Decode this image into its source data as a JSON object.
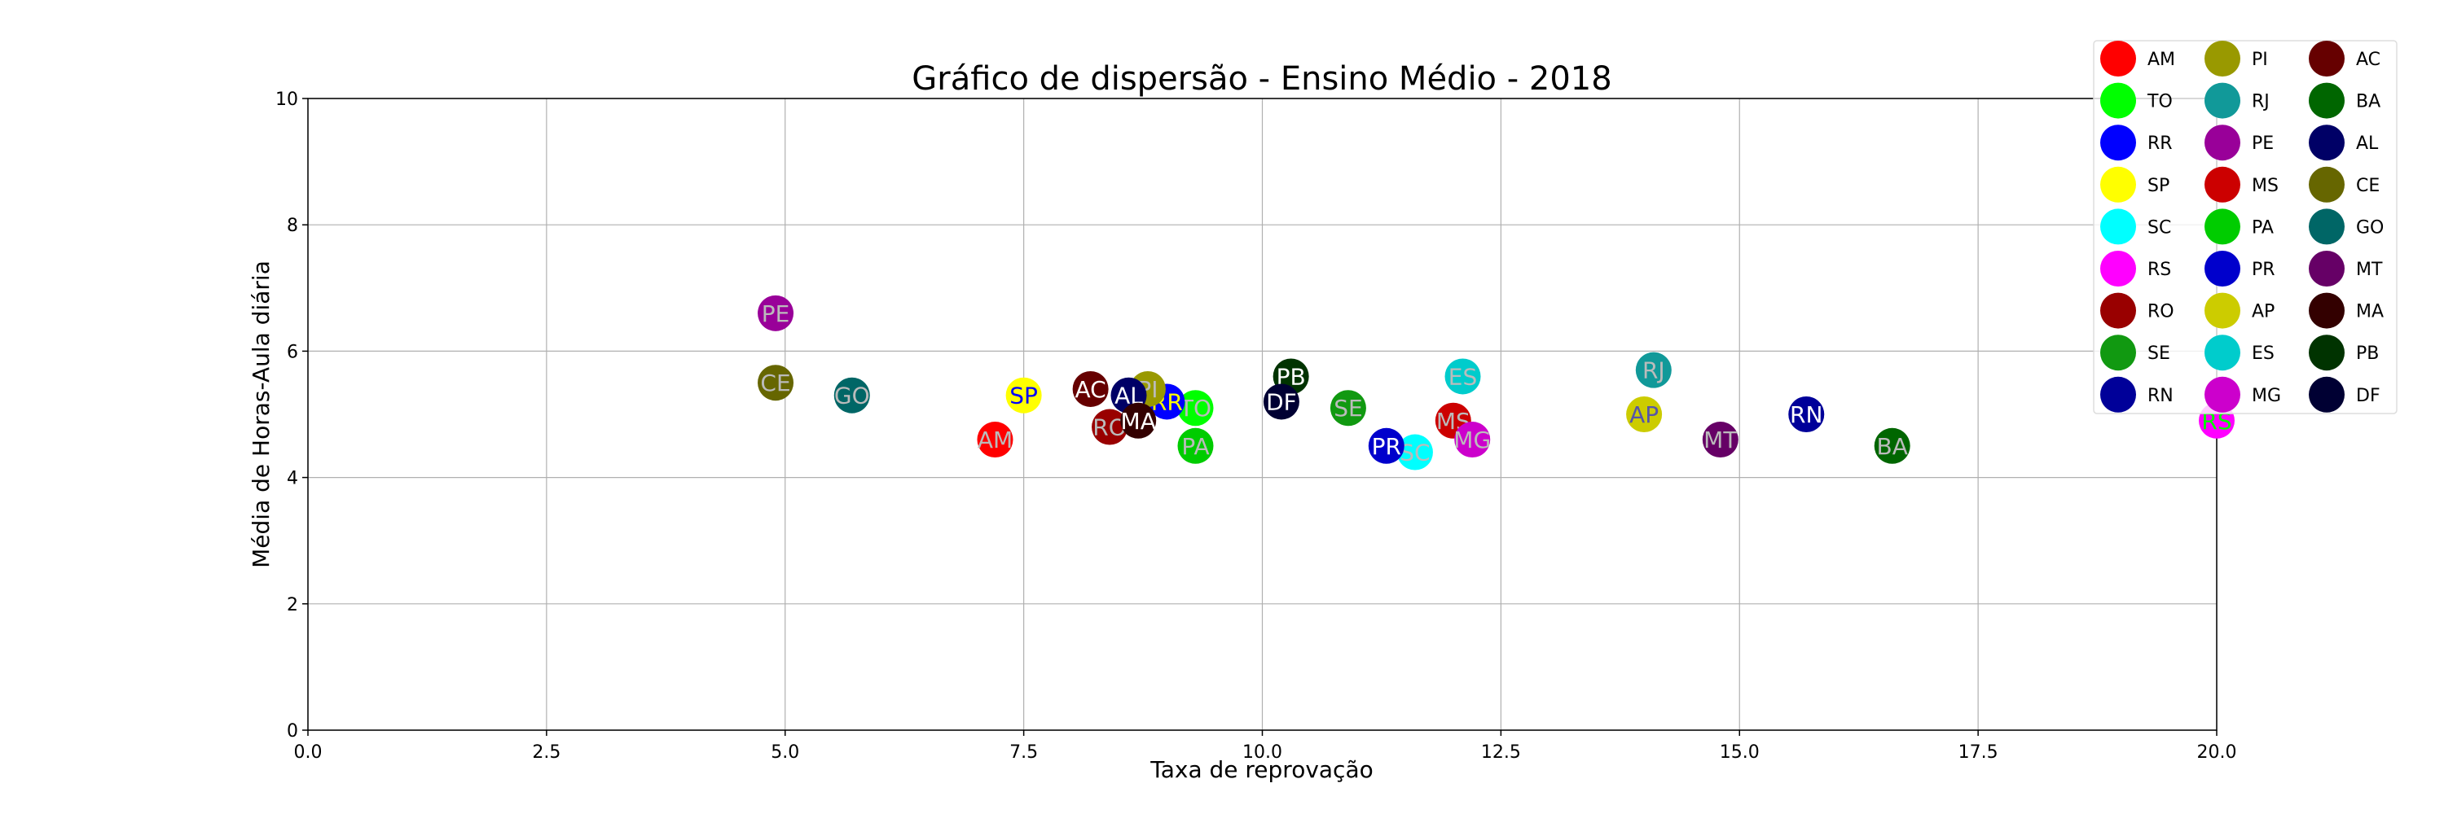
{
  "chart_data": {
    "type": "scatter",
    "title": "Gráfico de dispersão - Ensino Médio - 2018",
    "xlabel": "Taxa de reprovação",
    "ylabel": "Média de Horas-Aula diária",
    "xlim": [
      0,
      20
    ],
    "ylim": [
      0,
      10
    ],
    "xticks": [
      "0.0",
      "2.5",
      "5.0",
      "7.5",
      "10.0",
      "12.5",
      "15.0",
      "17.5",
      "20.0"
    ],
    "yticks": [
      "0",
      "2",
      "4",
      "6",
      "8",
      "10"
    ],
    "grid": true,
    "legend_placement": "top-right",
    "series": [
      {
        "name": "AM",
        "color": "#ff0000",
        "text_color": "#bbbbbb",
        "x": 7.2,
        "y": 4.6
      },
      {
        "name": "TO",
        "color": "#00ff00",
        "text_color": "#bbbbbb",
        "x": 9.3,
        "y": 5.1
      },
      {
        "name": "RR",
        "color": "#0000ff",
        "text_color": "#ffff00",
        "x": 9.0,
        "y": 5.2
      },
      {
        "name": "SP",
        "color": "#ffff00",
        "text_color": "#0000ff",
        "x": 7.5,
        "y": 5.3
      },
      {
        "name": "SC",
        "color": "#00ffff",
        "text_color": "#bbbbbb",
        "x": 11.6,
        "y": 4.4
      },
      {
        "name": "RS",
        "color": "#ff00ff",
        "text_color": "#00ff00",
        "x": 20.0,
        "y": 4.9
      },
      {
        "name": "RO",
        "color": "#990000",
        "text_color": "#bbbbbb",
        "x": 8.4,
        "y": 4.8
      },
      {
        "name": "SE",
        "color": "#119911",
        "text_color": "#bbbbbb",
        "x": 10.9,
        "y": 5.1
      },
      {
        "name": "RN",
        "color": "#000099",
        "text_color": "#ffffff",
        "x": 15.7,
        "y": 5.0
      },
      {
        "name": "PI",
        "color": "#999900",
        "text_color": "#bbbbbb",
        "x": 8.8,
        "y": 5.4
      },
      {
        "name": "RJ",
        "color": "#119999",
        "text_color": "#bbbbbb",
        "x": 14.1,
        "y": 5.7
      },
      {
        "name": "PE",
        "color": "#990099",
        "text_color": "#bbbbbb",
        "x": 4.9,
        "y": 6.6
      },
      {
        "name": "MS",
        "color": "#cc0000",
        "text_color": "#bbbbbb",
        "x": 12.0,
        "y": 4.9
      },
      {
        "name": "PA",
        "color": "#00cc00",
        "text_color": "#bbbbbb",
        "x": 9.3,
        "y": 4.5
      },
      {
        "name": "PR",
        "color": "#0000cc",
        "text_color": "#ffffff",
        "x": 11.3,
        "y": 4.5
      },
      {
        "name": "AP",
        "color": "#cccc00",
        "text_color": "#5555aa",
        "x": 14.0,
        "y": 5.0
      },
      {
        "name": "ES",
        "color": "#00cccc",
        "text_color": "#bbbbbb",
        "x": 12.1,
        "y": 5.6
      },
      {
        "name": "MG",
        "color": "#cc00cc",
        "text_color": "#bbbbbb",
        "x": 12.2,
        "y": 4.6
      },
      {
        "name": "AC",
        "color": "#660000",
        "text_color": "#ffffff",
        "x": 8.2,
        "y": 5.4
      },
      {
        "name": "BA",
        "color": "#006600",
        "text_color": "#bbbbbb",
        "x": 16.6,
        "y": 4.5
      },
      {
        "name": "AL",
        "color": "#000066",
        "text_color": "#ffffff",
        "x": 8.6,
        "y": 5.3
      },
      {
        "name": "CE",
        "color": "#666600",
        "text_color": "#bbbbbb",
        "x": 4.9,
        "y": 5.5
      },
      {
        "name": "GO",
        "color": "#006666",
        "text_color": "#bbbbbb",
        "x": 5.7,
        "y": 5.3
      },
      {
        "name": "MT",
        "color": "#660066",
        "text_color": "#bbbbbb",
        "x": 14.8,
        "y": 4.6
      },
      {
        "name": "MA",
        "color": "#330000",
        "text_color": "#ffffff",
        "x": 8.7,
        "y": 4.9
      },
      {
        "name": "PB",
        "color": "#003300",
        "text_color": "#ffffff",
        "x": 10.3,
        "y": 5.6
      },
      {
        "name": "DF",
        "color": "#000033",
        "text_color": "#ffffff",
        "x": 10.2,
        "y": 5.2
      }
    ]
  }
}
